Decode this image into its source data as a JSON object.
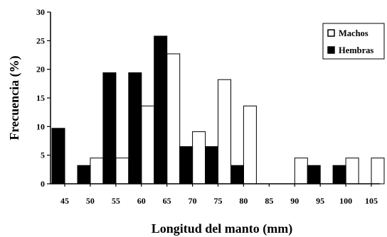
{
  "chart_data": {
    "type": "bar",
    "xlabel": "Longitud del manto (mm)",
    "ylabel": "Frecuencia (%)",
    "ylim": [
      0,
      30
    ],
    "yticks": [
      0,
      5,
      10,
      15,
      20,
      25,
      30
    ],
    "xticks": [
      45,
      50,
      55,
      60,
      65,
      70,
      75,
      80,
      85,
      90,
      95,
      100,
      105
    ],
    "bin_width": 5,
    "grid": false,
    "legend_position": "top-right",
    "series": [
      {
        "name": "Machos",
        "color": "#ffffff",
        "x": [
          50,
          55,
          60,
          65,
          70,
          75,
          80,
          90,
          100,
          105
        ],
        "values": [
          4.5,
          4.5,
          13.6,
          22.7,
          9.1,
          18.2,
          13.6,
          4.5,
          4.5,
          4.5
        ]
      },
      {
        "name": "Hembras",
        "color": "#000000",
        "x": [
          45,
          50,
          55,
          60,
          65,
          70,
          75,
          80,
          95,
          100
        ],
        "values": [
          9.7,
          3.2,
          19.4,
          19.4,
          25.8,
          6.5,
          6.5,
          3.2,
          3.2,
          3.2
        ]
      }
    ]
  }
}
